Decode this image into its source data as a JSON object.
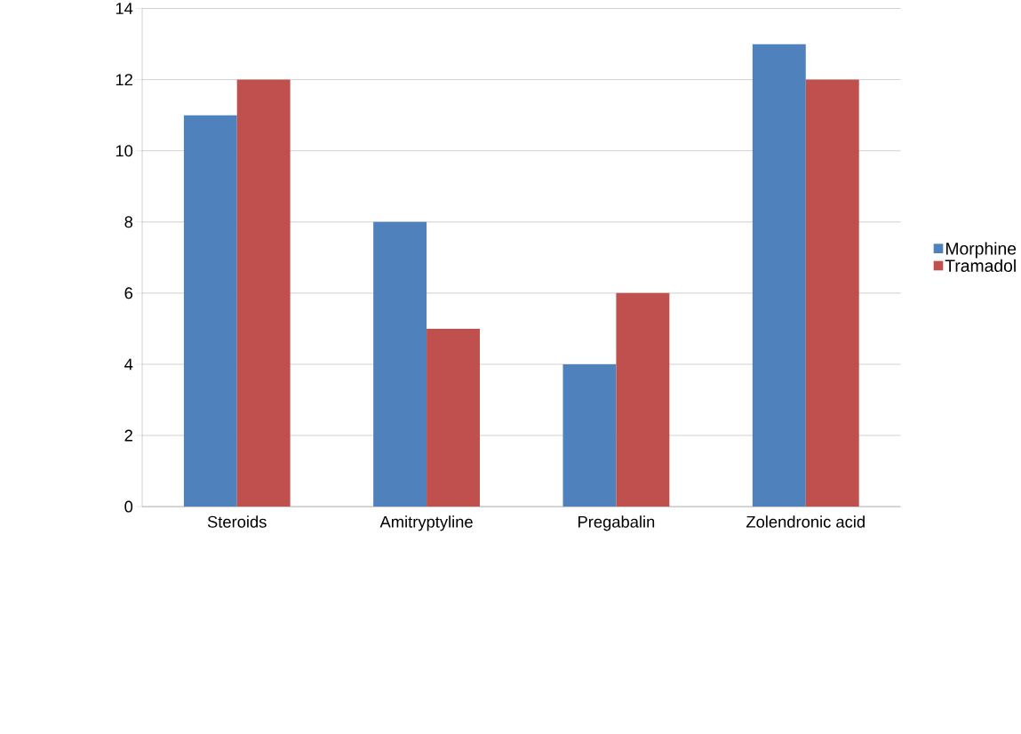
{
  "chart_data": {
    "type": "bar",
    "categories": [
      "Steroids",
      "Amitryptyline",
      "Pregabalin",
      "Zolendronic acid"
    ],
    "series": [
      {
        "name": "Morphine",
        "color": "#4f81bd",
        "values": [
          11,
          8,
          4,
          13
        ]
      },
      {
        "name": "Tramadol",
        "color": "#c0504d",
        "values": [
          12,
          5,
          6,
          12
        ]
      }
    ],
    "ylim": [
      0,
      14
    ],
    "yticks": [
      0,
      2,
      4,
      6,
      8,
      10,
      12,
      14
    ],
    "grid": "y",
    "legend": "right"
  }
}
